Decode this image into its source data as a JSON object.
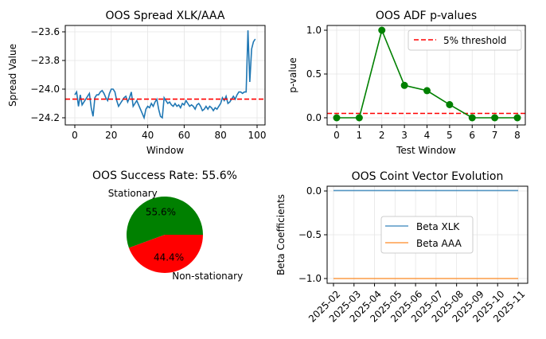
{
  "chart_data": [
    {
      "type": "line",
      "title": "OOS Spread XLK/AAA",
      "xlabel": "Window",
      "ylabel": "Spread Value",
      "xlim": [
        -4.5,
        104.5
      ],
      "ylim": [
        -24.24,
        -23.55
      ],
      "xticks": [
        0,
        20,
        40,
        60,
        80,
        100
      ],
      "yticks": [
        -23.6,
        -23.8,
        -24.0,
        -24.2
      ],
      "ytick_labels": [
        "−23.6",
        "−23.8",
        "−24.0",
        "−24.2"
      ],
      "threshold": -24.07,
      "color": "#1f77b4",
      "threshold_color": "#ff0000",
      "values": [
        -24.04,
        -24.02,
        -24.12,
        -24.04,
        -24.11,
        -24.09,
        -24.07,
        -24.05,
        -24.03,
        -24.13,
        -24.19,
        -24.06,
        -24.04,
        -24.04,
        -24.02,
        -24.01,
        -24.03,
        -24.06,
        -24.08,
        -24.03,
        -24.0,
        -24.0,
        -24.02,
        -24.08,
        -24.12,
        -24.1,
        -24.08,
        -24.06,
        -24.05,
        -24.09,
        -24.06,
        -24.02,
        -24.12,
        -24.1,
        -24.08,
        -24.11,
        -24.14,
        -24.17,
        -24.2,
        -24.14,
        -24.12,
        -24.13,
        -24.1,
        -24.12,
        -24.09,
        -24.07,
        -24.14,
        -24.19,
        -24.2,
        -24.06,
        -24.08,
        -24.1,
        -24.09,
        -24.11,
        -24.12,
        -24.1,
        -24.12,
        -24.11,
        -24.13,
        -24.1,
        -24.11,
        -24.08,
        -24.1,
        -24.12,
        -24.11,
        -24.12,
        -24.14,
        -24.11,
        -24.1,
        -24.12,
        -24.15,
        -24.14,
        -24.12,
        -24.14,
        -24.12,
        -24.13,
        -24.15,
        -24.13,
        -24.14,
        -24.12,
        -24.1,
        -24.06,
        -24.08,
        -24.05,
        -24.1,
        -24.09,
        -24.07,
        -24.05,
        -24.07,
        -24.04,
        -24.02,
        -24.02,
        -24.03,
        -24.02,
        -24.02,
        -23.59,
        -23.95,
        -23.72,
        -23.67,
        -23.65
      ]
    },
    {
      "type": "line",
      "title": "OOS ADF p-values",
      "xlabel": "Test Window",
      "ylabel": "p-value",
      "x": [
        0,
        1,
        2,
        3,
        4,
        5,
        6,
        7,
        8
      ],
      "values": [
        0,
        0,
        1,
        0.37,
        0.31,
        0.15,
        0,
        0,
        0
      ],
      "xlim": [
        -0.4,
        8.4
      ],
      "ylim": [
        -0.05,
        1.05
      ],
      "yticks": [
        0.0,
        0.5,
        1.0
      ],
      "ytick_labels": [
        "0.0",
        "0.5",
        "1.0"
      ],
      "threshold": 0.05,
      "legend": [
        "5% threshold"
      ],
      "legend_placement": "top-right",
      "color": "#008000",
      "threshold_color": "#ff0000"
    },
    {
      "type": "pie",
      "title": "OOS Success Rate: 55.6%",
      "labels": [
        "Stationary",
        "Non-stationary"
      ],
      "values": [
        55.6,
        44.4
      ],
      "pct_labels": [
        "55.6%",
        "44.4%"
      ],
      "colors": [
        "#008000",
        "#ff0000"
      ]
    },
    {
      "type": "line",
      "title": "OOS Coint Vector Evolution",
      "ylabel": "Beta Coefficients",
      "xticks": [
        "2025-02",
        "2025-03",
        "2025-04",
        "2025-05",
        "2025-06",
        "2025-07",
        "2025-08",
        "2025-09",
        "2025-10",
        "2025-11"
      ],
      "yticks": [
        0.0,
        -0.5,
        -1.0
      ],
      "ytick_labels": [
        "0.0",
        "−0.5",
        "−1.0"
      ],
      "ylim": [
        -1.05,
        0.02
      ],
      "series": [
        {
          "name": "Beta XLK",
          "values": [
            0.005,
            0.005
          ],
          "color": "#1f77b4"
        },
        {
          "name": "Beta AAA",
          "values": [
            -1.0,
            -1.0
          ],
          "color": "#ff7f0e"
        }
      ],
      "legend_placement": "center"
    }
  ]
}
